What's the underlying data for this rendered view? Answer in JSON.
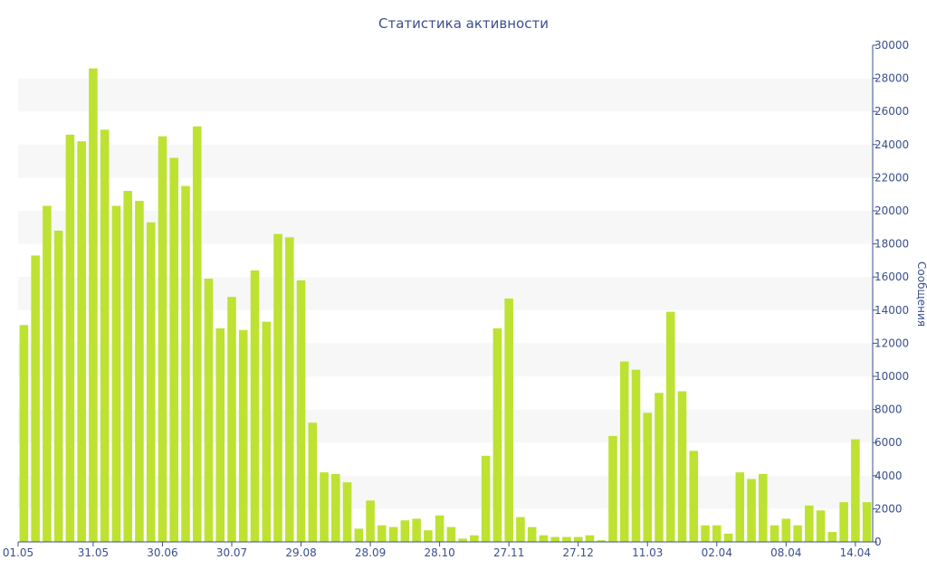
{
  "chart_data": {
    "type": "bar",
    "title": "Статистика активности",
    "xlabel": "",
    "ylabel": "Сообщения",
    "ylim": [
      0,
      30000
    ],
    "yticks": [
      0,
      2000,
      4000,
      6000,
      8000,
      10000,
      12000,
      14000,
      16000,
      18000,
      20000,
      22000,
      24000,
      26000,
      28000,
      30000
    ],
    "y_axis_side": "right",
    "grid": "alternating horizontal bands",
    "bar_color": "#bde232",
    "axis_color": "#3b4f8c",
    "band_color": "#f7f7f7",
    "xtick_labels": [
      {
        "label": "01.05",
        "index": 0
      },
      {
        "label": "31.05",
        "index": 6
      },
      {
        "label": "30.06",
        "index": 12
      },
      {
        "label": "30.07",
        "index": 18
      },
      {
        "label": "29.08",
        "index": 24
      },
      {
        "label": "28.09",
        "index": 30
      },
      {
        "label": "28.10",
        "index": 36
      },
      {
        "label": "27.11",
        "index": 42
      },
      {
        "label": "27.12",
        "index": 48
      },
      {
        "label": "11.03",
        "index": 54
      },
      {
        "label": "02.04",
        "index": 60
      },
      {
        "label": "08.04",
        "index": 66
      },
      {
        "label": "14.04",
        "index": 72
      }
    ],
    "values": [
      13100,
      17300,
      20300,
      18800,
      24600,
      24200,
      28600,
      24900,
      20300,
      21200,
      20600,
      19300,
      24500,
      23200,
      21500,
      25100,
      15900,
      12900,
      14800,
      12800,
      16400,
      13300,
      18600,
      18400,
      15800,
      7200,
      4200,
      4100,
      3600,
      800,
      2500,
      1000,
      900,
      1300,
      1400,
      700,
      1600,
      900,
      200,
      400,
      5200,
      12900,
      14700,
      1500,
      900,
      400,
      300,
      300,
      300,
      400,
      100,
      6400,
      10900,
      10400,
      7800,
      9000,
      13900,
      9100,
      5500,
      1000,
      1000,
      500,
      4200,
      3800,
      4100,
      1000,
      1400,
      1000,
      2200,
      1900,
      600,
      2400,
      6200,
      2400
    ]
  }
}
